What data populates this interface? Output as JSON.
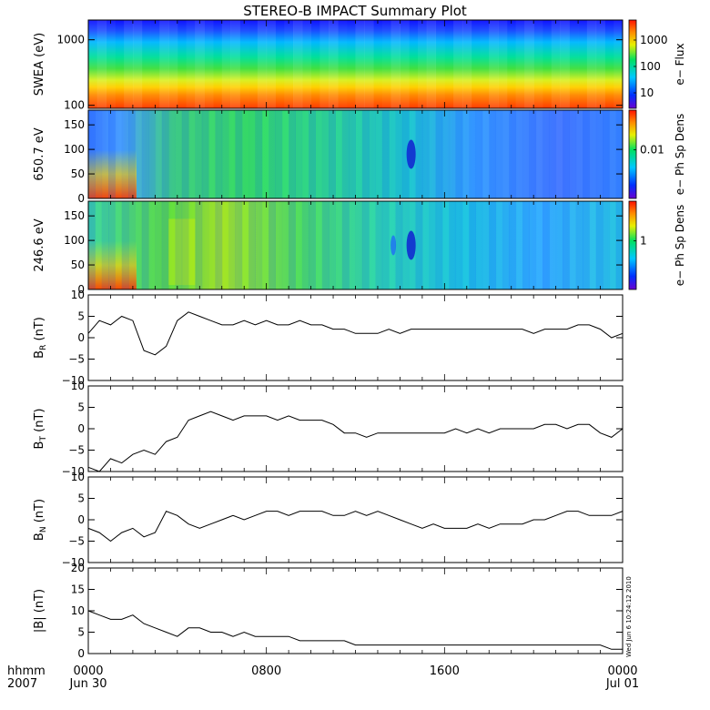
{
  "title": "STEREO-B IMPACT Summary Plot",
  "footer": {
    "left_top": "hhmm",
    "left_bottom": "2007"
  },
  "side_stamp": "Wed Jun  6 10:24:12 2010",
  "chart_data": [
    {
      "id": "swea",
      "type": "heatmap",
      "ylabel": "SWEA (eV)",
      "yscale": "log",
      "yticks": [
        {
          "value": 100,
          "label": "100"
        },
        {
          "value": 1000,
          "label": "1000"
        }
      ],
      "colorbar": {
        "label": "e− Flux",
        "ticks": [
          {
            "value": 1000,
            "label": "1000"
          },
          {
            "value": 100,
            "label": "100"
          },
          {
            "value": 10,
            "label": "10"
          }
        ]
      }
    },
    {
      "id": "pad650",
      "type": "heatmap",
      "ylabel": "650.7 eV",
      "ylim": [
        0,
        180
      ],
      "yticks": [
        {
          "value": 0,
          "label": "0"
        },
        {
          "value": 50,
          "label": "50"
        },
        {
          "value": 100,
          "label": "100"
        },
        {
          "value": 150,
          "label": "150"
        }
      ],
      "colorbar": {
        "label": "e− Ph Sp Dens",
        "ticks": [
          {
            "value": 0.01,
            "label": "0.01"
          }
        ]
      }
    },
    {
      "id": "pad246",
      "type": "heatmap",
      "ylabel": "246.6 eV",
      "ylim": [
        0,
        180
      ],
      "yticks": [
        {
          "value": 0,
          "label": "0"
        },
        {
          "value": 50,
          "label": "50"
        },
        {
          "value": 100,
          "label": "100"
        },
        {
          "value": 150,
          "label": "150"
        }
      ],
      "colorbar": {
        "label": "e− Ph Sp Dens",
        "ticks": [
          {
            "value": 1,
            "label": "1"
          }
        ]
      }
    },
    {
      "id": "br",
      "type": "line",
      "ylabel": "B",
      "ysub": "R",
      "yunit": "(nT)",
      "ylim": [
        -10,
        10
      ],
      "yticks": [
        {
          "value": -10,
          "label": "−10"
        },
        {
          "value": -5,
          "label": "−5"
        },
        {
          "value": 0,
          "label": "0"
        },
        {
          "value": 5,
          "label": "5"
        },
        {
          "value": 10,
          "label": "10"
        }
      ],
      "series": [
        {
          "x": [
            0,
            0.5,
            1,
            1.5,
            2,
            2.5,
            3,
            3.5,
            4,
            4.5,
            5,
            5.5,
            6,
            6.5,
            7,
            7.5,
            8,
            8.5,
            9,
            9.5,
            10,
            10.5,
            11,
            11.5,
            12,
            12.5,
            13,
            13.5,
            14,
            14.5,
            15,
            15.5,
            16,
            16.5,
            17,
            17.5,
            18,
            18.5,
            19,
            19.5,
            20,
            20.5,
            21,
            21.5,
            22,
            22.5,
            23,
            23.5,
            24
          ],
          "y": [
            1,
            4,
            3,
            5,
            4,
            -3,
            -4,
            -2,
            4,
            6,
            5,
            4,
            3,
            3,
            4,
            3,
            4,
            3,
            3,
            4,
            3,
            3,
            2,
            2,
            1,
            1,
            1,
            2,
            1,
            2,
            2,
            2,
            2,
            2,
            2,
            2,
            2,
            2,
            2,
            2,
            1,
            2,
            2,
            2,
            3,
            3,
            2,
            0,
            1
          ]
        }
      ]
    },
    {
      "id": "bt",
      "type": "line",
      "ylabel": "B",
      "ysub": "T",
      "yunit": "(nT)",
      "ylim": [
        -10,
        10
      ],
      "yticks": [
        {
          "value": -10,
          "label": "−10"
        },
        {
          "value": -5,
          "label": "−5"
        },
        {
          "value": 0,
          "label": "0"
        },
        {
          "value": 5,
          "label": "5"
        },
        {
          "value": 10,
          "label": "10"
        }
      ],
      "series": [
        {
          "x": [
            0,
            0.5,
            1,
            1.5,
            2,
            2.5,
            3,
            3.5,
            4,
            4.5,
            5,
            5.5,
            6,
            6.5,
            7,
            7.5,
            8,
            8.5,
            9,
            9.5,
            10,
            10.5,
            11,
            11.5,
            12,
            12.5,
            13,
            13.5,
            14,
            14.5,
            15,
            15.5,
            16,
            16.5,
            17,
            17.5,
            18,
            18.5,
            19,
            19.5,
            20,
            20.5,
            21,
            21.5,
            22,
            22.5,
            23,
            23.5,
            24
          ],
          "y": [
            -9,
            -10,
            -7,
            -8,
            -6,
            -5,
            -6,
            -3,
            -2,
            2,
            3,
            4,
            3,
            2,
            3,
            3,
            3,
            2,
            3,
            2,
            2,
            2,
            1,
            -1,
            -1,
            -2,
            -1,
            -1,
            -1,
            -1,
            -1,
            -1,
            -1,
            0,
            -1,
            0,
            -1,
            0,
            0,
            0,
            0,
            1,
            1,
            0,
            1,
            1,
            -1,
            -2,
            0
          ]
        }
      ]
    },
    {
      "id": "bn",
      "type": "line",
      "ylabel": "B",
      "ysub": "N",
      "yunit": "(nT)",
      "ylim": [
        -10,
        10
      ],
      "yticks": [
        {
          "value": -10,
          "label": "−10"
        },
        {
          "value": -5,
          "label": "−5"
        },
        {
          "value": 0,
          "label": "0"
        },
        {
          "value": 5,
          "label": "5"
        },
        {
          "value": 10,
          "label": "10"
        }
      ],
      "series": [
        {
          "x": [
            0,
            0.5,
            1,
            1.5,
            2,
            2.5,
            3,
            3.5,
            4,
            4.5,
            5,
            5.5,
            6,
            6.5,
            7,
            7.5,
            8,
            8.5,
            9,
            9.5,
            10,
            10.5,
            11,
            11.5,
            12,
            12.5,
            13,
            13.5,
            14,
            14.5,
            15,
            15.5,
            16,
            16.5,
            17,
            17.5,
            18,
            18.5,
            19,
            19.5,
            20,
            20.5,
            21,
            21.5,
            22,
            22.5,
            23,
            23.5,
            24
          ],
          "y": [
            -2,
            -3,
            -5,
            -3,
            -2,
            -4,
            -3,
            2,
            1,
            -1,
            -2,
            -1,
            0,
            1,
            0,
            1,
            2,
            2,
            1,
            2,
            2,
            2,
            1,
            1,
            2,
            1,
            2,
            1,
            0,
            -1,
            -2,
            -1,
            -2,
            -2,
            -2,
            -1,
            -2,
            -1,
            -1,
            -1,
            0,
            0,
            1,
            2,
            2,
            1,
            1,
            1,
            2
          ]
        }
      ]
    },
    {
      "id": "bmag",
      "type": "line",
      "ylabel": "|B|",
      "ysub": "",
      "yunit": "(nT)",
      "ylim": [
        0,
        20
      ],
      "yticks": [
        {
          "value": 0,
          "label": "0"
        },
        {
          "value": 5,
          "label": "5"
        },
        {
          "value": 10,
          "label": "10"
        },
        {
          "value": 15,
          "label": "15"
        },
        {
          "value": 20,
          "label": "20"
        }
      ],
      "series": [
        {
          "x": [
            0,
            0.5,
            1,
            1.5,
            2,
            2.5,
            3,
            3.5,
            4,
            4.5,
            5,
            5.5,
            6,
            6.5,
            7,
            7.5,
            8,
            8.5,
            9,
            9.5,
            10,
            10.5,
            11,
            11.5,
            12,
            12.5,
            13,
            13.5,
            14,
            14.5,
            15,
            15.5,
            16,
            16.5,
            17,
            17.5,
            18,
            18.5,
            19,
            19.5,
            20,
            20.5,
            21,
            21.5,
            22,
            22.5,
            23,
            23.5,
            24
          ],
          "y": [
            10,
            9,
            8,
            8,
            9,
            7,
            6,
            5,
            4,
            6,
            6,
            5,
            5,
            4,
            5,
            4,
            4,
            4,
            4,
            3,
            3,
            3,
            3,
            3,
            2,
            2,
            2,
            2,
            2,
            2,
            2,
            2,
            2,
            2,
            2,
            2,
            2,
            2,
            2,
            2,
            2,
            2,
            2,
            2,
            2,
            2,
            2,
            1,
            1
          ]
        }
      ]
    }
  ],
  "xaxis": {
    "range": [
      0,
      24
    ],
    "ticks": [
      {
        "value": 0,
        "label": "0000",
        "sublabel": "Jun 30"
      },
      {
        "value": 8,
        "label": "0800",
        "sublabel": ""
      },
      {
        "value": 16,
        "label": "1600",
        "sublabel": ""
      },
      {
        "value": 24,
        "label": "0000",
        "sublabel": "Jul 01"
      }
    ]
  }
}
